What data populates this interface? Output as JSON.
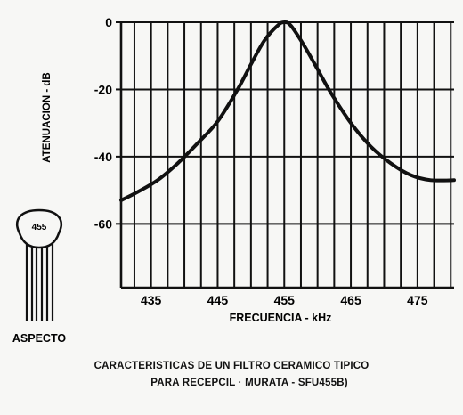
{
  "chart_data": {
    "type": "line",
    "xlabel": "FRECUENCIA - kHz",
    "ylabel": "ATENUACION - dB",
    "x_ticks": [
      435,
      445,
      455,
      465,
      475
    ],
    "y_ticks": [
      0,
      -20,
      -40,
      -60
    ],
    "y_tick_labels": [
      "0",
      "-20",
      "-40",
      "-60"
    ],
    "xlim": [
      430.5,
      480.5
    ],
    "ylim": [
      -79,
      0
    ],
    "grid": true,
    "series": [
      {
        "x": [
          430.5,
          433,
          436,
          439,
          442,
          445,
          448,
          450,
          452,
          454,
          455,
          456,
          458,
          460,
          462,
          465,
          468,
          471,
          474,
          477,
          480.5
        ],
        "values": [
          -53,
          -50.5,
          -47,
          -42,
          -36,
          -29.5,
          -20,
          -12.5,
          -5.5,
          -1,
          0,
          -1,
          -7,
          -14,
          -21,
          -30,
          -37,
          -42,
          -45.5,
          -47,
          -47
        ]
      }
    ]
  },
  "inset": {
    "component_label": "455",
    "aspect_label": "ASPECTO"
  },
  "caption": {
    "line1": "CARACTERISTICAS DE UN FILTRO CERAMICO TIPICO",
    "line2": "PARA RECEPCIL ·  MURATA - SFU455B)"
  }
}
